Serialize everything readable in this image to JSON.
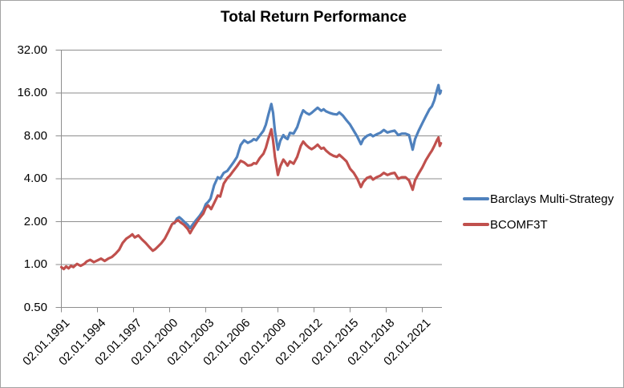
{
  "chart_data": {
    "type": "line",
    "title": "Total Return Performance",
    "y_scale": "log2",
    "ylim": [
      0.5,
      32
    ],
    "xlim": [
      1990.5,
      2022.7
    ],
    "grid": true,
    "grid_color": "#8e8e8e",
    "axis_color": "#8e8e8e",
    "y_ticks": [
      {
        "label": "32.00",
        "value": 32
      },
      {
        "label": "16.00",
        "value": 16
      },
      {
        "label": "8.00",
        "value": 8
      },
      {
        "label": "4.00",
        "value": 4
      },
      {
        "label": "2.00",
        "value": 2
      },
      {
        "label": "1.00",
        "value": 1
      },
      {
        "label": "0.50",
        "value": 0.5
      }
    ],
    "x_ticks": [
      {
        "label": "02.01.1991",
        "year": 1991
      },
      {
        "label": "02.01.1994",
        "year": 1994
      },
      {
        "label": "02.01.1997",
        "year": 1997
      },
      {
        "label": "02.01.2000",
        "year": 2000
      },
      {
        "label": "02.01.2003",
        "year": 2003
      },
      {
        "label": "02.01.2006",
        "year": 2006
      },
      {
        "label": "02.01.2009",
        "year": 2009
      },
      {
        "label": "02.01.2012",
        "year": 2012
      },
      {
        "label": "02.01.2015",
        "year": 2015
      },
      {
        "label": "02.01.2018",
        "year": 2018
      },
      {
        "label": "02.01.2021",
        "year": 2021
      }
    ],
    "legend": {
      "position": "right",
      "entries": [
        {
          "label": "Barclays Multi-Strategy",
          "color": "#4F81BD"
        },
        {
          "label": "BCOMF3T",
          "color": "#C0504D"
        }
      ]
    },
    "series": [
      {
        "name": "Barclays Multi-Strategy",
        "color": "#4F81BD",
        "points": [
          [
            2000.4,
            1.95
          ],
          [
            2000.6,
            2.1
          ],
          [
            2000.8,
            2.15
          ],
          [
            2001.0,
            2.08
          ],
          [
            2001.2,
            2.0
          ],
          [
            2001.5,
            1.9
          ],
          [
            2001.7,
            1.8
          ],
          [
            2001.9,
            1.9
          ],
          [
            2002.2,
            2.05
          ],
          [
            2002.5,
            2.2
          ],
          [
            2002.8,
            2.4
          ],
          [
            2003.0,
            2.65
          ],
          [
            2003.2,
            2.75
          ],
          [
            2003.4,
            2.9
          ],
          [
            2003.7,
            3.6
          ],
          [
            2004.0,
            4.1
          ],
          [
            2004.2,
            4.0
          ],
          [
            2004.5,
            4.4
          ],
          [
            2004.8,
            4.55
          ],
          [
            2005.0,
            4.8
          ],
          [
            2005.3,
            5.2
          ],
          [
            2005.6,
            5.7
          ],
          [
            2005.9,
            6.9
          ],
          [
            2006.2,
            7.45
          ],
          [
            2006.5,
            7.15
          ],
          [
            2006.8,
            7.35
          ],
          [
            2007.0,
            7.6
          ],
          [
            2007.2,
            7.45
          ],
          [
            2007.5,
            8.05
          ],
          [
            2007.8,
            8.7
          ],
          [
            2008.0,
            9.6
          ],
          [
            2008.2,
            11.2
          ],
          [
            2008.45,
            13.4
          ],
          [
            2008.6,
            11.6
          ],
          [
            2008.75,
            8.6
          ],
          [
            2009.0,
            6.4
          ],
          [
            2009.2,
            7.4
          ],
          [
            2009.45,
            8.1
          ],
          [
            2009.6,
            7.8
          ],
          [
            2009.8,
            7.6
          ],
          [
            2010.0,
            8.4
          ],
          [
            2010.3,
            8.3
          ],
          [
            2010.6,
            9.2
          ],
          [
            2010.9,
            11.0
          ],
          [
            2011.1,
            12.1
          ],
          [
            2011.35,
            11.6
          ],
          [
            2011.6,
            11.3
          ],
          [
            2011.8,
            11.6
          ],
          [
            2012.0,
            12.0
          ],
          [
            2012.3,
            12.6
          ],
          [
            2012.6,
            12.0
          ],
          [
            2012.8,
            12.3
          ],
          [
            2013.0,
            11.9
          ],
          [
            2013.3,
            11.6
          ],
          [
            2013.6,
            11.4
          ],
          [
            2013.9,
            11.3
          ],
          [
            2014.1,
            11.7
          ],
          [
            2014.4,
            11.1
          ],
          [
            2014.7,
            10.3
          ],
          [
            2015.0,
            9.6
          ],
          [
            2015.3,
            8.7
          ],
          [
            2015.6,
            7.9
          ],
          [
            2015.9,
            7.0
          ],
          [
            2016.1,
            7.6
          ],
          [
            2016.4,
            8.0
          ],
          [
            2016.7,
            8.2
          ],
          [
            2016.9,
            7.95
          ],
          [
            2017.2,
            8.2
          ],
          [
            2017.5,
            8.4
          ],
          [
            2017.8,
            8.8
          ],
          [
            2018.1,
            8.45
          ],
          [
            2018.4,
            8.6
          ],
          [
            2018.7,
            8.7
          ],
          [
            2019.0,
            8.1
          ],
          [
            2019.3,
            8.3
          ],
          [
            2019.6,
            8.3
          ],
          [
            2019.9,
            8.1
          ],
          [
            2020.2,
            6.4
          ],
          [
            2020.4,
            7.6
          ],
          [
            2020.7,
            8.7
          ],
          [
            2021.0,
            9.8
          ],
          [
            2021.3,
            11.0
          ],
          [
            2021.6,
            12.3
          ],
          [
            2021.8,
            12.9
          ],
          [
            2022.0,
            14.2
          ],
          [
            2022.2,
            16.5
          ],
          [
            2022.35,
            18.2
          ],
          [
            2022.45,
            15.8
          ],
          [
            2022.55,
            16.6
          ]
        ]
      },
      {
        "name": "BCOMF3T",
        "color": "#C0504D",
        "points": [
          [
            1991.0,
            0.96
          ],
          [
            1991.2,
            0.93
          ],
          [
            1991.4,
            0.97
          ],
          [
            1991.6,
            0.94
          ],
          [
            1991.8,
            0.98
          ],
          [
            1992.0,
            0.96
          ],
          [
            1992.3,
            1.01
          ],
          [
            1992.6,
            0.98
          ],
          [
            1992.9,
            1.01
          ],
          [
            1993.1,
            1.05
          ],
          [
            1993.4,
            1.08
          ],
          [
            1993.7,
            1.04
          ],
          [
            1994.0,
            1.07
          ],
          [
            1994.3,
            1.1
          ],
          [
            1994.6,
            1.06
          ],
          [
            1994.9,
            1.1
          ],
          [
            1995.2,
            1.13
          ],
          [
            1995.5,
            1.19
          ],
          [
            1995.8,
            1.27
          ],
          [
            1996.1,
            1.42
          ],
          [
            1996.4,
            1.52
          ],
          [
            1996.7,
            1.58
          ],
          [
            1996.9,
            1.63
          ],
          [
            1997.1,
            1.55
          ],
          [
            1997.4,
            1.6
          ],
          [
            1997.7,
            1.5
          ],
          [
            1998.0,
            1.42
          ],
          [
            1998.3,
            1.33
          ],
          [
            1998.6,
            1.25
          ],
          [
            1998.8,
            1.28
          ],
          [
            1999.0,
            1.33
          ],
          [
            1999.3,
            1.41
          ],
          [
            1999.6,
            1.52
          ],
          [
            1999.9,
            1.7
          ],
          [
            2000.2,
            1.92
          ],
          [
            2000.5,
            2.0
          ],
          [
            2000.7,
            2.05
          ],
          [
            2000.9,
            1.98
          ],
          [
            2001.2,
            1.9
          ],
          [
            2001.5,
            1.78
          ],
          [
            2001.7,
            1.66
          ],
          [
            2001.9,
            1.78
          ],
          [
            2002.2,
            1.95
          ],
          [
            2002.5,
            2.12
          ],
          [
            2002.8,
            2.28
          ],
          [
            2003.0,
            2.5
          ],
          [
            2003.2,
            2.6
          ],
          [
            2003.45,
            2.45
          ],
          [
            2003.7,
            2.7
          ],
          [
            2004.0,
            3.05
          ],
          [
            2004.2,
            3.0
          ],
          [
            2004.5,
            3.7
          ],
          [
            2004.8,
            4.05
          ],
          [
            2005.0,
            4.2
          ],
          [
            2005.3,
            4.55
          ],
          [
            2005.6,
            4.9
          ],
          [
            2005.9,
            5.35
          ],
          [
            2006.2,
            5.2
          ],
          [
            2006.5,
            4.95
          ],
          [
            2006.8,
            5.0
          ],
          [
            2007.0,
            5.15
          ],
          [
            2007.2,
            5.1
          ],
          [
            2007.5,
            5.6
          ],
          [
            2007.8,
            6.0
          ],
          [
            2008.0,
            6.6
          ],
          [
            2008.2,
            7.6
          ],
          [
            2008.45,
            8.9
          ],
          [
            2008.6,
            7.4
          ],
          [
            2008.75,
            5.7
          ],
          [
            2009.0,
            4.25
          ],
          [
            2009.2,
            4.9
          ],
          [
            2009.45,
            5.45
          ],
          [
            2009.6,
            5.25
          ],
          [
            2009.8,
            4.95
          ],
          [
            2010.0,
            5.3
          ],
          [
            2010.3,
            5.1
          ],
          [
            2010.6,
            5.7
          ],
          [
            2010.9,
            6.8
          ],
          [
            2011.1,
            7.3
          ],
          [
            2011.35,
            6.9
          ],
          [
            2011.6,
            6.6
          ],
          [
            2011.8,
            6.45
          ],
          [
            2012.0,
            6.6
          ],
          [
            2012.3,
            6.95
          ],
          [
            2012.6,
            6.5
          ],
          [
            2012.8,
            6.6
          ],
          [
            2013.0,
            6.3
          ],
          [
            2013.3,
            6.0
          ],
          [
            2013.6,
            5.8
          ],
          [
            2013.9,
            5.7
          ],
          [
            2014.1,
            5.9
          ],
          [
            2014.4,
            5.6
          ],
          [
            2014.7,
            5.3
          ],
          [
            2015.0,
            4.7
          ],
          [
            2015.3,
            4.4
          ],
          [
            2015.6,
            4.0
          ],
          [
            2015.9,
            3.5
          ],
          [
            2016.1,
            3.8
          ],
          [
            2016.4,
            4.05
          ],
          [
            2016.7,
            4.15
          ],
          [
            2016.9,
            3.95
          ],
          [
            2017.2,
            4.1
          ],
          [
            2017.5,
            4.2
          ],
          [
            2017.8,
            4.4
          ],
          [
            2018.1,
            4.25
          ],
          [
            2018.4,
            4.35
          ],
          [
            2018.7,
            4.4
          ],
          [
            2019.0,
            4.0
          ],
          [
            2019.3,
            4.1
          ],
          [
            2019.6,
            4.1
          ],
          [
            2019.9,
            3.9
          ],
          [
            2020.2,
            3.35
          ],
          [
            2020.4,
            3.9
          ],
          [
            2020.7,
            4.35
          ],
          [
            2021.0,
            4.8
          ],
          [
            2021.3,
            5.4
          ],
          [
            2021.6,
            5.95
          ],
          [
            2021.8,
            6.3
          ],
          [
            2022.0,
            6.8
          ],
          [
            2022.2,
            7.4
          ],
          [
            2022.35,
            7.8
          ],
          [
            2022.45,
            6.8
          ],
          [
            2022.55,
            7.1
          ]
        ]
      }
    ]
  }
}
